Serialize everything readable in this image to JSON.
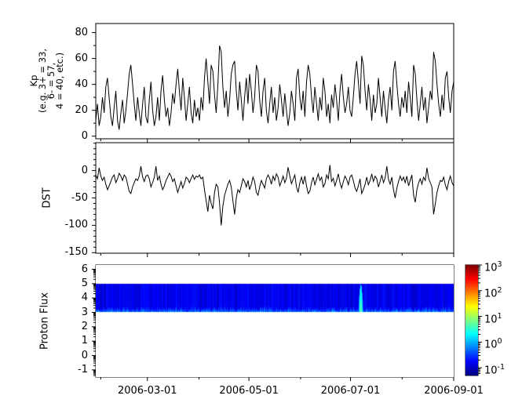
{
  "figure": {
    "background": "#ffffff",
    "line_color": "#000000",
    "frame_color": "#000000"
  },
  "xaxis": {
    "start_date": "2006-01-29",
    "end_date": "2006-09-01",
    "span_days": 215,
    "tick_labels": [
      "2006-03-01",
      "2006-05-01",
      "2006-07-01",
      "2006-09-01"
    ],
    "major_tick_day_index": [
      31,
      92,
      153,
      215
    ],
    "minor_tick_day_index": [
      3,
      62,
      123,
      184
    ]
  },
  "chart_data": [
    {
      "type": "line",
      "name": "kp_index",
      "ylabel_lines": [
        "Kp",
        "(e.g. 3+ = 33,",
        "6- = 57,",
        "4 = 40, etc.)"
      ],
      "ylim": [
        -2,
        87
      ],
      "yticks_major": [
        0,
        20,
        40,
        60,
        80
      ],
      "ytick_labels": [
        "0",
        "20",
        "40",
        "60",
        "80"
      ],
      "yticks_minor": [
        10,
        30,
        50,
        70
      ],
      "x_start": "2006-01-29",
      "x_end": "2006-09-01",
      "cadence_days": 1,
      "values": [
        12,
        25,
        8,
        15,
        30,
        18,
        38,
        45,
        30,
        15,
        8,
        22,
        35,
        12,
        5,
        18,
        28,
        10,
        20,
        33,
        48,
        55,
        40,
        25,
        12,
        30,
        18,
        8,
        25,
        38,
        15,
        10,
        28,
        42,
        20,
        8,
        15,
        30,
        12,
        35,
        47,
        28,
        15,
        22,
        8,
        18,
        33,
        25,
        40,
        52,
        35,
        20,
        45,
        30,
        12,
        25,
        38,
        18,
        10,
        28,
        15,
        22,
        12,
        30,
        20,
        45,
        60,
        42,
        25,
        55,
        50,
        32,
        18,
        40,
        70,
        65,
        38,
        22,
        35,
        15,
        28,
        48,
        55,
        58,
        35,
        20,
        42,
        28,
        12,
        30,
        45,
        25,
        48,
        35,
        18,
        30,
        55,
        50,
        28,
        15,
        35,
        45,
        20,
        10,
        25,
        38,
        18,
        30,
        12,
        22,
        40,
        28,
        15,
        33,
        20,
        8,
        18,
        35,
        25,
        12,
        45,
        52,
        30,
        20,
        35,
        15,
        42,
        55,
        48,
        30,
        18,
        38,
        25,
        12,
        30,
        20,
        45,
        35,
        15,
        25,
        10,
        32,
        22,
        40,
        28,
        12,
        35,
        48,
        30,
        18,
        25,
        38,
        20,
        15,
        30,
        48,
        58,
        42,
        25,
        62,
        55,
        35,
        20,
        40,
        28,
        12,
        32,
        18,
        25,
        45,
        30,
        15,
        35,
        22,
        10,
        28,
        38,
        20,
        50,
        58,
        40,
        25,
        15,
        30,
        22,
        35,
        18,
        42,
        30,
        15,
        55,
        48,
        28,
        12,
        25,
        38,
        20,
        30,
        10,
        22,
        35,
        28,
        65,
        58,
        40,
        25,
        15,
        32,
        20,
        45,
        50,
        30,
        18,
        35,
        42
      ]
    },
    {
      "type": "line",
      "name": "dst_index",
      "ylabel": "DST",
      "ylim": [
        -151,
        51
      ],
      "yticks_major": [
        0,
        -50,
        -100,
        -150
      ],
      "ytick_labels": [
        "0",
        "-50",
        "-100",
        "-150"
      ],
      "yticks_minor": [
        50,
        40,
        30,
        20,
        10,
        -10,
        -20,
        -30,
        -40,
        -60,
        -70,
        -80,
        -90,
        -110,
        -120,
        -130,
        -140
      ],
      "x_start": "2006-01-29",
      "x_end": "2006-09-01",
      "cadence_days": 1,
      "values": [
        -8,
        -15,
        5,
        -10,
        -18,
        -12,
        -25,
        -35,
        -28,
        -20,
        -12,
        -8,
        -22,
        -15,
        -5,
        -10,
        -18,
        -8,
        -12,
        -25,
        -38,
        -42,
        -30,
        -22,
        -15,
        -18,
        -10,
        8,
        -12,
        -20,
        -10,
        -8,
        -15,
        -30,
        -22,
        -12,
        8,
        -18,
        -10,
        -25,
        -35,
        -28,
        -18,
        -12,
        -5,
        -10,
        -20,
        -15,
        -28,
        -40,
        -30,
        -20,
        -32,
        -24,
        -12,
        -15,
        -22,
        -14,
        -8,
        -16,
        -10,
        -12,
        -8,
        -15,
        -12,
        -35,
        -55,
        -75,
        -45,
        -60,
        -70,
        -40,
        -25,
        -30,
        -60,
        -100,
        -65,
        -45,
        -35,
        -25,
        -18,
        -30,
        -55,
        -80,
        -50,
        -35,
        -40,
        -28,
        -15,
        -20,
        -30,
        -18,
        -35,
        -25,
        -12,
        -20,
        -40,
        -45,
        -30,
        -18,
        -25,
        -32,
        -15,
        -8,
        -14,
        -25,
        -10,
        -18,
        -6,
        -12,
        -28,
        -20,
        -10,
        -22,
        -14,
        6,
        -10,
        -24,
        -16,
        -8,
        -30,
        -40,
        -22,
        -12,
        -25,
        -10,
        -28,
        -42,
        -38,
        -22,
        -12,
        -26,
        -16,
        -6,
        -18,
        -12,
        -30,
        -24,
        -8,
        -15,
        10,
        -20,
        -14,
        -28,
        -18,
        -6,
        -22,
        -32,
        -20,
        -10,
        -16,
        -26,
        -12,
        -8,
        -18,
        -32,
        -38,
        -28,
        -15,
        -42,
        -35,
        -25,
        -12,
        -26,
        -18,
        -6,
        -20,
        -10,
        -15,
        -30,
        -20,
        -8,
        -22,
        -14,
        8,
        -16,
        -25,
        -12,
        -35,
        -50,
        -32,
        -20,
        -10,
        -18,
        -12,
        -22,
        -10,
        -28,
        -18,
        -8,
        -45,
        -58,
        -35,
        -22,
        -15,
        -25,
        -12,
        -18,
        5,
        -14,
        -22,
        -30,
        -80,
        -60,
        -40,
        -28,
        -18,
        -20,
        -12,
        -26,
        -35,
        -20,
        -10,
        -22,
        -28
      ]
    },
    {
      "type": "heatmap",
      "name": "proton_flux_spectrogram",
      "ylabel": "Proton Flux",
      "ylim": [
        -1.5,
        6.3
      ],
      "yticks_major": [
        -1,
        0,
        1,
        2,
        3,
        4,
        5,
        6
      ],
      "ytick_labels": [
        "-1",
        "0",
        "1",
        "2",
        "3",
        "4",
        "5",
        "6"
      ],
      "band": {
        "y_min": 3.0,
        "y_max": 5.0,
        "background_flux": 0.15,
        "edge_flux_min": 0.3,
        "edge_flux_max": 1.3,
        "event": {
          "x_frac": 0.7395,
          "approx_date": "2006-07-07",
          "y_top": 4.95,
          "peak_flux": 6.0
        }
      },
      "colorbar": {
        "scale": "log10",
        "log_min": -1.3,
        "log_max": 3.0,
        "tick_exponents": [
          3,
          2,
          1,
          0,
          -1
        ],
        "colormap": "jet"
      }
    }
  ]
}
